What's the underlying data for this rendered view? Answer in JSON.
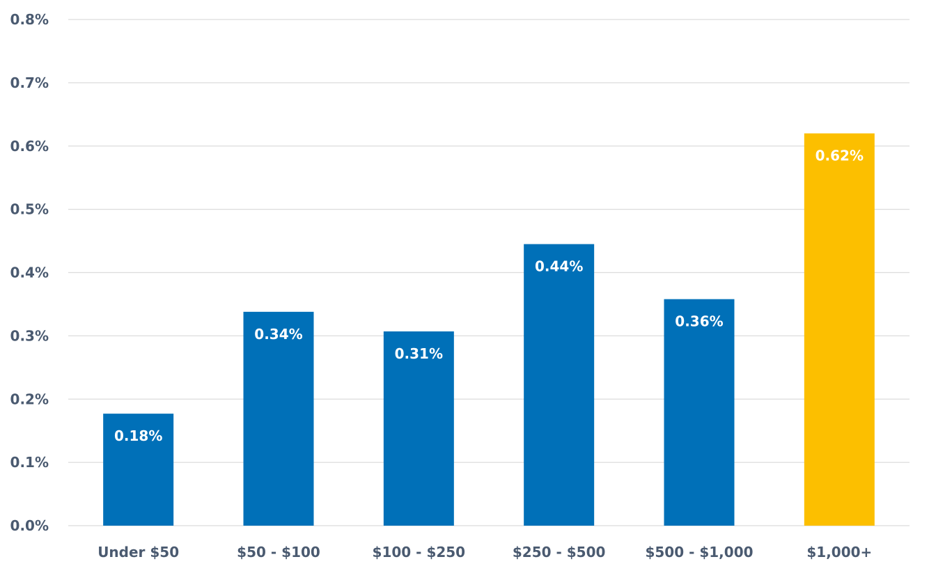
{
  "chart_data": {
    "type": "bar",
    "categories": [
      "Under $50",
      "$50 - $100",
      "$100 - $250",
      "$250 - $500",
      "$500 - $1,000",
      "$1,000+"
    ],
    "values": [
      0.177,
      0.338,
      0.307,
      0.445,
      0.358,
      0.62
    ],
    "data_labels": [
      "0.18%",
      "0.34%",
      "0.31%",
      "0.44%",
      "0.36%",
      "0.62%"
    ],
    "ylim": [
      0,
      0.8
    ],
    "yticks": [
      0,
      0.1,
      0.2,
      0.3,
      0.4,
      0.5,
      0.6,
      0.7,
      0.8
    ],
    "ytick_labels": [
      "0.0%",
      "0.1%",
      "0.2%",
      "0.3%",
      "0.4%",
      "0.5%",
      "0.6%",
      "0.7%",
      "0.8%"
    ],
    "grid": true,
    "colors": {
      "default": "#0070b8",
      "highlight": "#fcbf00",
      "grid": "#dcdcdc",
      "axis_text": "#4a5a70"
    },
    "highlight_index": 5
  }
}
